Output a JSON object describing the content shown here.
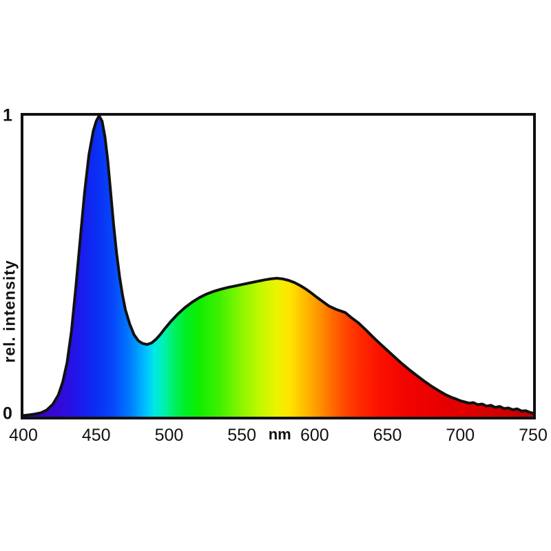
{
  "figure": {
    "background": "#ffffff",
    "frame_color": "#111111",
    "curve_color": "#111111",
    "curve_stroke_width": 4
  },
  "chart_data": {
    "type": "area",
    "title": "",
    "xlabel_unit": "nm",
    "ylabel": "rel. intensity",
    "xlim": [
      400,
      750
    ],
    "ylim": [
      0,
      1
    ],
    "grid": false,
    "x_ticks": [
      400,
      450,
      500,
      550,
      600,
      650,
      700,
      750
    ],
    "y_tick_labels": {
      "top": "1",
      "bottom": "0"
    },
    "legend": null,
    "description": "White LED emission spectrum: narrow blue peak at ~452 nm (rel. intensity 1.0), trough at ~485 nm (~0.24), broad phosphor band peaking at ~574 nm (~0.46), long red tail to 750 nm. Area under curve filled with visible-spectrum rainbow gradient keyed to wavelength.",
    "points": [
      [
        400,
        0.004
      ],
      [
        404,
        0.006
      ],
      [
        408,
        0.009
      ],
      [
        412,
        0.013
      ],
      [
        416,
        0.022
      ],
      [
        420,
        0.04
      ],
      [
        424,
        0.072
      ],
      [
        427,
        0.115
      ],
      [
        430,
        0.18
      ],
      [
        433,
        0.285
      ],
      [
        436,
        0.43
      ],
      [
        439,
        0.59
      ],
      [
        442,
        0.745
      ],
      [
        445,
        0.87
      ],
      [
        448,
        0.95
      ],
      [
        450,
        0.982
      ],
      [
        452,
        1.0
      ],
      [
        454,
        0.982
      ],
      [
        456,
        0.93
      ],
      [
        458,
        0.848
      ],
      [
        460,
        0.74
      ],
      [
        462,
        0.634
      ],
      [
        464,
        0.543
      ],
      [
        466,
        0.467
      ],
      [
        468,
        0.405
      ],
      [
        470,
        0.356
      ],
      [
        473,
        0.308
      ],
      [
        476,
        0.272
      ],
      [
        479,
        0.252
      ],
      [
        482,
        0.243
      ],
      [
        485,
        0.24
      ],
      [
        488,
        0.245
      ],
      [
        491,
        0.257
      ],
      [
        494,
        0.273
      ],
      [
        497,
        0.292
      ],
      [
        501,
        0.315
      ],
      [
        506,
        0.341
      ],
      [
        511,
        0.363
      ],
      [
        516,
        0.381
      ],
      [
        521,
        0.396
      ],
      [
        526,
        0.408
      ],
      [
        531,
        0.417
      ],
      [
        536,
        0.424
      ],
      [
        541,
        0.43
      ],
      [
        546,
        0.435
      ],
      [
        551,
        0.44
      ],
      [
        556,
        0.445
      ],
      [
        561,
        0.45
      ],
      [
        566,
        0.455
      ],
      [
        570,
        0.458
      ],
      [
        574,
        0.46
      ],
      [
        578,
        0.458
      ],
      [
        582,
        0.453
      ],
      [
        586,
        0.446
      ],
      [
        590,
        0.436
      ],
      [
        594,
        0.424
      ],
      [
        598,
        0.41
      ],
      [
        602,
        0.395
      ],
      [
        606,
        0.381
      ],
      [
        610,
        0.367
      ],
      [
        615,
        0.356
      ],
      [
        621,
        0.346
      ],
      [
        625,
        0.33
      ],
      [
        630,
        0.312
      ],
      [
        635,
        0.289
      ],
      [
        640,
        0.265
      ],
      [
        645,
        0.242
      ],
      [
        650,
        0.22
      ],
      [
        655,
        0.198
      ],
      [
        660,
        0.176
      ],
      [
        665,
        0.156
      ],
      [
        670,
        0.137
      ],
      [
        675,
        0.119
      ],
      [
        680,
        0.102
      ],
      [
        685,
        0.087
      ],
      [
        690,
        0.073
      ],
      [
        694,
        0.064
      ],
      [
        697,
        0.059
      ],
      [
        700,
        0.053
      ],
      [
        703,
        0.049
      ],
      [
        706,
        0.045
      ],
      [
        709,
        0.047
      ],
      [
        712,
        0.04
      ],
      [
        715,
        0.042
      ],
      [
        718,
        0.035
      ],
      [
        721,
        0.038
      ],
      [
        724,
        0.031
      ],
      [
        727,
        0.034
      ],
      [
        730,
        0.027
      ],
      [
        733,
        0.029
      ],
      [
        736,
        0.023
      ],
      [
        739,
        0.026
      ],
      [
        742,
        0.019
      ],
      [
        745,
        0.02
      ],
      [
        748,
        0.014
      ],
      [
        750,
        0.012
      ]
    ],
    "spectrum_gradient": [
      {
        "wl": 400,
        "color": "#30009A"
      },
      {
        "wl": 412,
        "color": "#3804C2"
      },
      {
        "wl": 425,
        "color": "#3309D8"
      },
      {
        "wl": 438,
        "color": "#1E18EC"
      },
      {
        "wl": 450,
        "color": "#0A2EF4"
      },
      {
        "wl": 462,
        "color": "#0648FA"
      },
      {
        "wl": 474,
        "color": "#0080FF"
      },
      {
        "wl": 484,
        "color": "#00C0FF"
      },
      {
        "wl": 490,
        "color": "#00E8E8"
      },
      {
        "wl": 497,
        "color": "#00F2A8"
      },
      {
        "wl": 504,
        "color": "#00F060"
      },
      {
        "wl": 511,
        "color": "#00EE28"
      },
      {
        "wl": 520,
        "color": "#0EEE00"
      },
      {
        "wl": 535,
        "color": "#42F000"
      },
      {
        "wl": 550,
        "color": "#8CF600"
      },
      {
        "wl": 562,
        "color": "#C0F800"
      },
      {
        "wl": 574,
        "color": "#ECF400"
      },
      {
        "wl": 583,
        "color": "#FFE400"
      },
      {
        "wl": 592,
        "color": "#FFC000"
      },
      {
        "wl": 601,
        "color": "#FF9C00"
      },
      {
        "wl": 610,
        "color": "#FF7400"
      },
      {
        "wl": 619,
        "color": "#FF4E00"
      },
      {
        "wl": 630,
        "color": "#FF2C00"
      },
      {
        "wl": 645,
        "color": "#FB1000"
      },
      {
        "wl": 662,
        "color": "#F20400"
      },
      {
        "wl": 685,
        "color": "#E80000"
      },
      {
        "wl": 712,
        "color": "#DA0000"
      },
      {
        "wl": 750,
        "color": "#C20000"
      }
    ]
  }
}
